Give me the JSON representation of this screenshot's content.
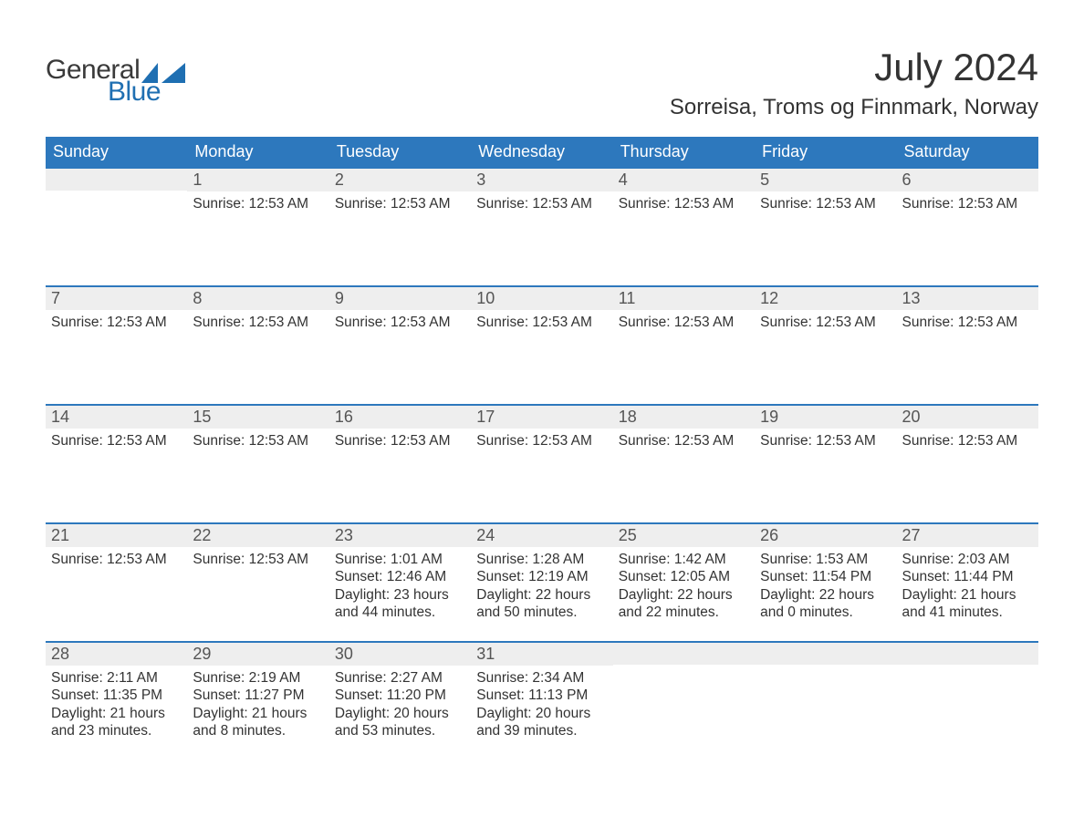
{
  "logo": {
    "word1": "General",
    "word2": "Blue",
    "sail_color": "#1f6fb2",
    "text_color_1": "#3a3a3a",
    "text_color_2": "#1f6fb2"
  },
  "title": "July 2024",
  "location": "Sorreisa, Troms og Finnmark, Norway",
  "styling": {
    "header_bg": "#2d78bd",
    "header_fg": "#ffffff",
    "daynum_bg": "#eeeeee",
    "border_color": "#2d78bd",
    "body_fontsize": 15.5,
    "title_fontsize": 42,
    "location_fontsize": 24,
    "weekday_fontsize": 18
  },
  "weekdays": [
    "Sunday",
    "Monday",
    "Tuesday",
    "Wednesday",
    "Thursday",
    "Friday",
    "Saturday"
  ],
  "weeks": [
    [
      {
        "day": "",
        "lines": []
      },
      {
        "day": "1",
        "lines": [
          "Sunrise: 12:53 AM"
        ]
      },
      {
        "day": "2",
        "lines": [
          "Sunrise: 12:53 AM"
        ]
      },
      {
        "day": "3",
        "lines": [
          "Sunrise: 12:53 AM"
        ]
      },
      {
        "day": "4",
        "lines": [
          "Sunrise: 12:53 AM"
        ]
      },
      {
        "day": "5",
        "lines": [
          "Sunrise: 12:53 AM"
        ]
      },
      {
        "day": "6",
        "lines": [
          "Sunrise: 12:53 AM"
        ]
      }
    ],
    [
      {
        "day": "7",
        "lines": [
          "Sunrise: 12:53 AM"
        ]
      },
      {
        "day": "8",
        "lines": [
          "Sunrise: 12:53 AM"
        ]
      },
      {
        "day": "9",
        "lines": [
          "Sunrise: 12:53 AM"
        ]
      },
      {
        "day": "10",
        "lines": [
          "Sunrise: 12:53 AM"
        ]
      },
      {
        "day": "11",
        "lines": [
          "Sunrise: 12:53 AM"
        ]
      },
      {
        "day": "12",
        "lines": [
          "Sunrise: 12:53 AM"
        ]
      },
      {
        "day": "13",
        "lines": [
          "Sunrise: 12:53 AM"
        ]
      }
    ],
    [
      {
        "day": "14",
        "lines": [
          "Sunrise: 12:53 AM"
        ]
      },
      {
        "day": "15",
        "lines": [
          "Sunrise: 12:53 AM"
        ]
      },
      {
        "day": "16",
        "lines": [
          "Sunrise: 12:53 AM"
        ]
      },
      {
        "day": "17",
        "lines": [
          "Sunrise: 12:53 AM"
        ]
      },
      {
        "day": "18",
        "lines": [
          "Sunrise: 12:53 AM"
        ]
      },
      {
        "day": "19",
        "lines": [
          "Sunrise: 12:53 AM"
        ]
      },
      {
        "day": "20",
        "lines": [
          "Sunrise: 12:53 AM"
        ]
      }
    ],
    [
      {
        "day": "21",
        "lines": [
          "Sunrise: 12:53 AM"
        ]
      },
      {
        "day": "22",
        "lines": [
          "Sunrise: 12:53 AM"
        ]
      },
      {
        "day": "23",
        "lines": [
          "Sunrise: 1:01 AM",
          "Sunset: 12:46 AM",
          "Daylight: 23 hours and 44 minutes."
        ]
      },
      {
        "day": "24",
        "lines": [
          "Sunrise: 1:28 AM",
          "Sunset: 12:19 AM",
          "Daylight: 22 hours and 50 minutes."
        ]
      },
      {
        "day": "25",
        "lines": [
          "Sunrise: 1:42 AM",
          "Sunset: 12:05 AM",
          "Daylight: 22 hours and 22 minutes."
        ]
      },
      {
        "day": "26",
        "lines": [
          "Sunrise: 1:53 AM",
          "Sunset: 11:54 PM",
          "Daylight: 22 hours and 0 minutes."
        ]
      },
      {
        "day": "27",
        "lines": [
          "Sunrise: 2:03 AM",
          "Sunset: 11:44 PM",
          "Daylight: 21 hours and 41 minutes."
        ]
      }
    ],
    [
      {
        "day": "28",
        "lines": [
          "Sunrise: 2:11 AM",
          "Sunset: 11:35 PM",
          "Daylight: 21 hours and 23 minutes."
        ]
      },
      {
        "day": "29",
        "lines": [
          "Sunrise: 2:19 AM",
          "Sunset: 11:27 PM",
          "Daylight: 21 hours and 8 minutes."
        ]
      },
      {
        "day": "30",
        "lines": [
          "Sunrise: 2:27 AM",
          "Sunset: 11:20 PM",
          "Daylight: 20 hours and 53 minutes."
        ]
      },
      {
        "day": "31",
        "lines": [
          "Sunrise: 2:34 AM",
          "Sunset: 11:13 PM",
          "Daylight: 20 hours and 39 minutes."
        ]
      },
      {
        "day": "",
        "lines": []
      },
      {
        "day": "",
        "lines": []
      },
      {
        "day": "",
        "lines": []
      }
    ]
  ]
}
